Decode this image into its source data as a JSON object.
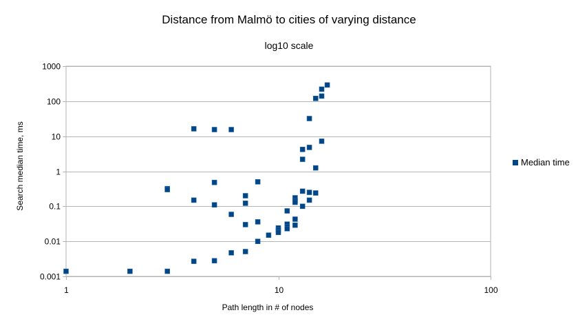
{
  "chart_data": {
    "type": "scatter",
    "title": "Distance from Malmö to cities of varying distance",
    "subtitle": "log10 scale",
    "xlabel": "Path length in # of nodes",
    "ylabel": "Search median time, ms",
    "x_log_scale": true,
    "y_log_scale": true,
    "xlim": [
      1,
      100
    ],
    "ylim": [
      0.001,
      1000
    ],
    "x_ticks": [
      1,
      10,
      100
    ],
    "y_ticks": [
      1000,
      100,
      10,
      1,
      0.1,
      0.01,
      0.001
    ],
    "grid_horizontal": true,
    "grid_vertical": false,
    "legend_position": "right",
    "series": [
      {
        "name": "Median time",
        "color": "#004586",
        "points": [
          [
            1,
            0.0014
          ],
          [
            2,
            0.0014
          ],
          [
            3,
            0.0014
          ],
          [
            3,
            0.32
          ],
          [
            3,
            0.3
          ],
          [
            4,
            16.3
          ],
          [
            4,
            0.15
          ],
          [
            4,
            0.0027
          ],
          [
            5,
            15.5
          ],
          [
            5,
            0.48
          ],
          [
            5,
            0.11
          ],
          [
            5,
            0.0028
          ],
          [
            6,
            15.5
          ],
          [
            6,
            0.059
          ],
          [
            6,
            0.0047
          ],
          [
            7,
            0.2
          ],
          [
            7,
            0.122
          ],
          [
            7,
            0.03
          ],
          [
            7,
            0.0051
          ],
          [
            8,
            0.5
          ],
          [
            8,
            0.036
          ],
          [
            8,
            0.01
          ],
          [
            9,
            0.015
          ],
          [
            10,
            0.024
          ],
          [
            10,
            0.021
          ],
          [
            10,
            0.018
          ],
          [
            11,
            0.074
          ],
          [
            11,
            0.031
          ],
          [
            11,
            0.026
          ],
          [
            11,
            0.023
          ],
          [
            12,
            0.175
          ],
          [
            12,
            0.145
          ],
          [
            12,
            0.13
          ],
          [
            12,
            0.043
          ],
          [
            12,
            0.029
          ],
          [
            13,
            4.2
          ],
          [
            13,
            2.2
          ],
          [
            13,
            0.27
          ],
          [
            13,
            0.1
          ],
          [
            14,
            32
          ],
          [
            14,
            4.8
          ],
          [
            14,
            0.25
          ],
          [
            14,
            0.15
          ],
          [
            15,
            120
          ],
          [
            15,
            1.25
          ],
          [
            15,
            0.24
          ],
          [
            16,
            220
          ],
          [
            16,
            140
          ],
          [
            16,
            7.2
          ],
          [
            17,
            290
          ]
        ]
      }
    ]
  }
}
